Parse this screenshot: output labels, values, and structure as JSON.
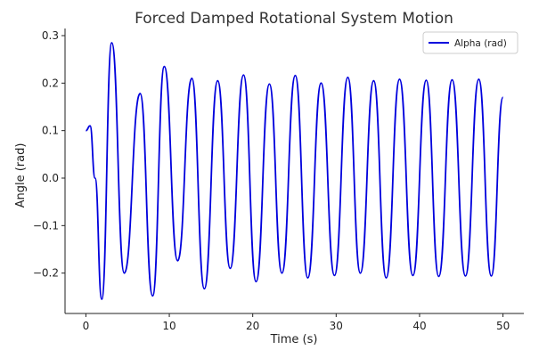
{
  "chart_data": {
    "type": "line",
    "title": "Forced Damped Rotational System Motion",
    "xlabel": "Time (s)",
    "ylabel": "Angle (rad)",
    "xlim": [
      -2.5,
      52.5
    ],
    "ylim": [
      -0.285,
      0.315
    ],
    "xticks": [
      0,
      10,
      20,
      30,
      40,
      50
    ],
    "xtick_labels": [
      "0",
      "10",
      "20",
      "30",
      "40",
      "50"
    ],
    "yticks": [
      -0.2,
      -0.1,
      0.0,
      0.1,
      0.2,
      0.3
    ],
    "ytick_labels": [
      "−0.2",
      "−0.1",
      "0.0",
      "0.1",
      "0.2",
      "0.3"
    ],
    "grid": false,
    "legend_position": "top-right",
    "series": [
      {
        "name": "Alpha (rad)",
        "color": "#0000dd",
        "x": [
          0,
          0.5,
          1.1,
          1.9,
          3.1,
          4.6,
          6.5,
          8.0,
          9.4,
          11.0,
          12.7,
          14.2,
          15.8,
          17.3,
          18.9,
          20.4,
          22.0,
          23.5,
          25.1,
          26.6,
          28.2,
          29.8,
          31.4,
          32.9,
          34.5,
          36.0,
          37.6,
          39.2,
          40.8,
          42.3,
          43.9,
          45.5,
          47.1,
          48.6,
          50.0
        ],
        "y": [
          0.1,
          0.11,
          0.0,
          -0.255,
          0.285,
          -0.2,
          0.178,
          -0.248,
          0.235,
          -0.174,
          0.21,
          -0.233,
          0.205,
          -0.19,
          0.217,
          -0.218,
          0.198,
          -0.2,
          0.216,
          -0.21,
          0.2,
          -0.205,
          0.212,
          -0.2,
          0.205,
          -0.21,
          0.208,
          -0.205,
          0.206,
          -0.207,
          0.207,
          -0.206,
          0.208,
          -0.206,
          0.17
        ]
      }
    ]
  }
}
